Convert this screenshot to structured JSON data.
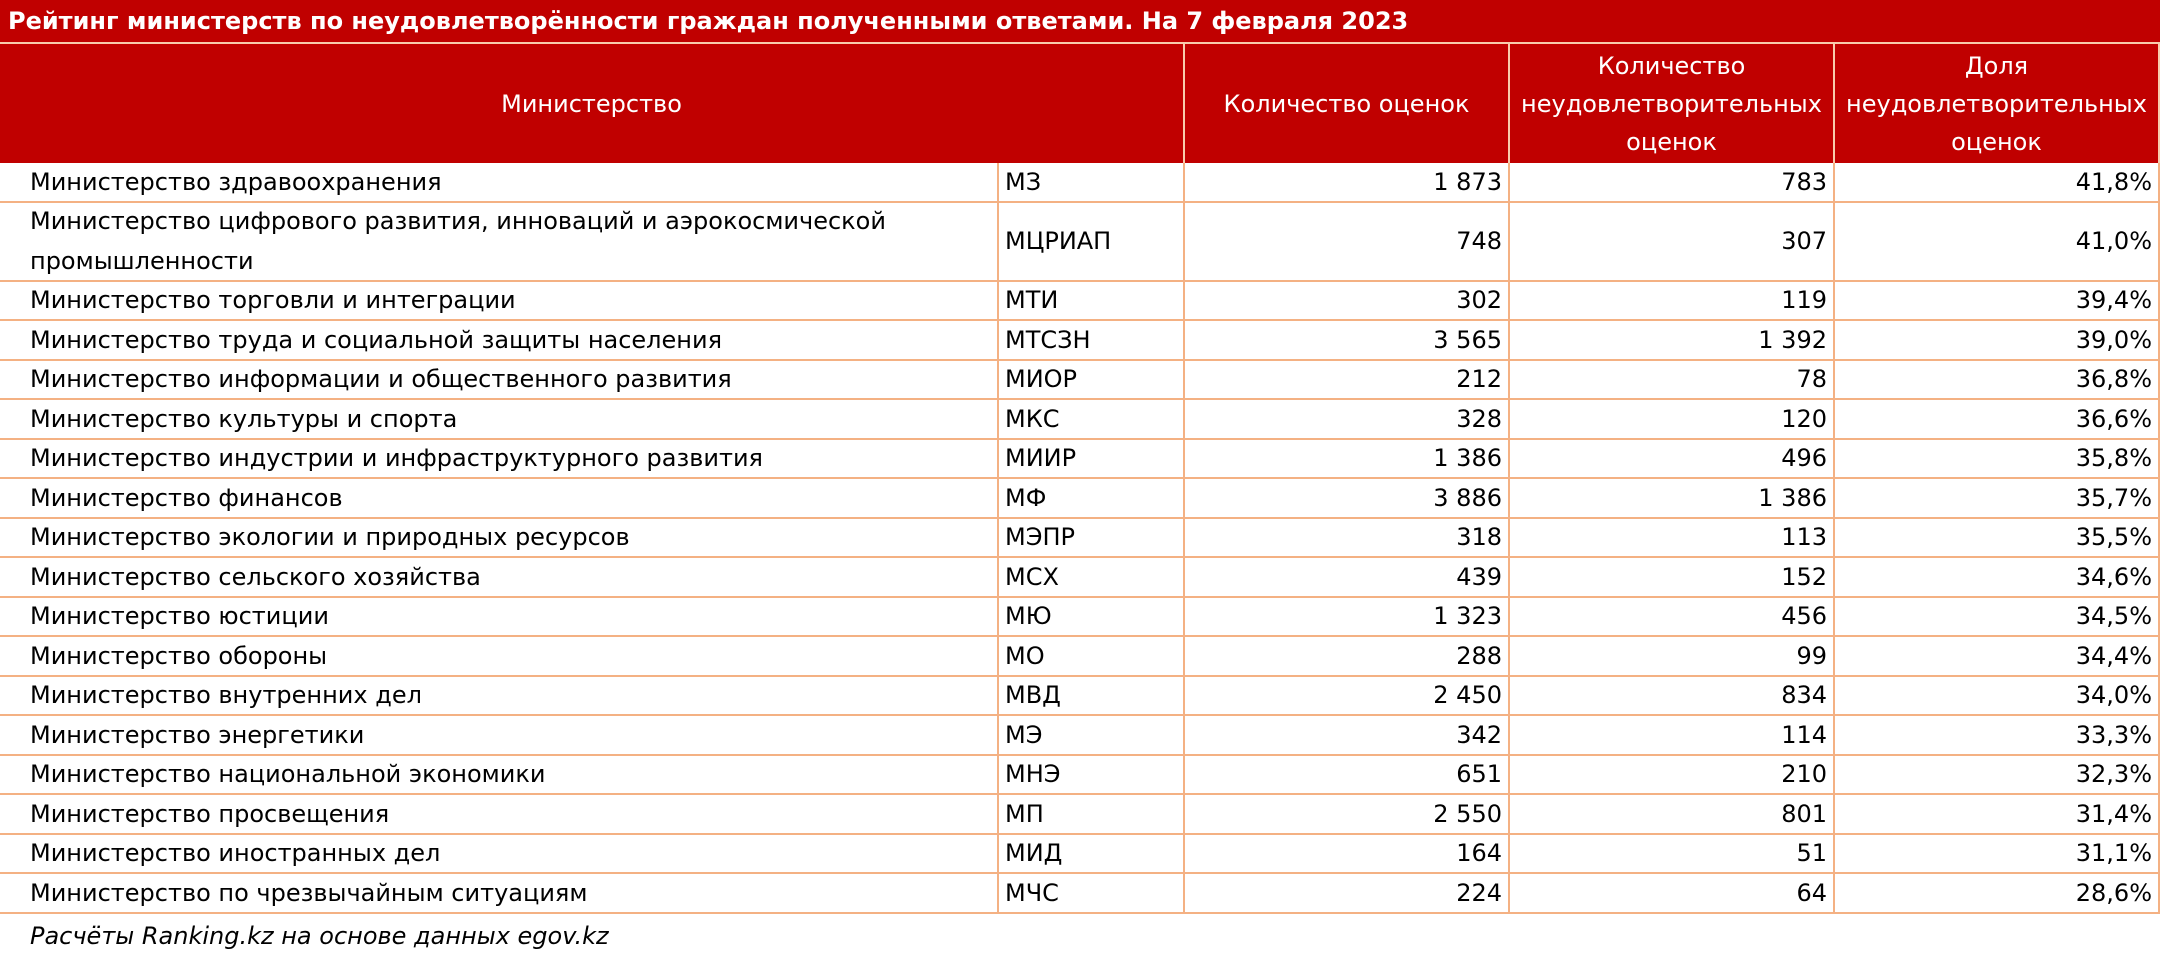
{
  "title": "Рейтинг министерств по неудовлетворённости граждан полученными ответами. На 7 февраля 2023",
  "header": {
    "columns": [
      "Министерство",
      "Количество оценок",
      "Количество неудовлетворительных оценок",
      "Доля неудовлетворительных оценок"
    ]
  },
  "table": {
    "rows": [
      [
        "Министерство здравоохранения",
        "МЗ",
        "1 873",
        "783",
        "41,8%"
      ],
      [
        "Министерство цифрового развития, инноваций и аэрокосмической промышленности",
        "МЦРИАП",
        "748",
        "307",
        "41,0%"
      ],
      [
        "Министерство торговли и интеграции",
        "МТИ",
        "302",
        "119",
        "39,4%"
      ],
      [
        "Министерство труда и социальной защиты населения",
        "МТСЗН",
        "3 565",
        "1 392",
        "39,0%"
      ],
      [
        "Министерство информации и общественного развития",
        "МИОР",
        "212",
        "78",
        "36,8%"
      ],
      [
        "Министерство культуры и спорта",
        "МКС",
        "328",
        "120",
        "36,6%"
      ],
      [
        "Министерство индустрии и инфраструктурного развития",
        "МИИР",
        "1 386",
        "496",
        "35,8%"
      ],
      [
        "Министерство финансов",
        "МФ",
        "3 886",
        "1 386",
        "35,7%"
      ],
      [
        "Министерство экологии и природных ресурсов",
        "МЭПР",
        "318",
        "113",
        "35,5%"
      ],
      [
        "Министерство сельского хозяйства",
        "МСХ",
        "439",
        "152",
        "34,6%"
      ],
      [
        "Министерство юстиции",
        "МЮ",
        "1 323",
        "456",
        "34,5%"
      ],
      [
        "Министерство обороны",
        "МО",
        "288",
        "99",
        "34,4%"
      ],
      [
        "Министерство внутренних дел",
        "МВД",
        "2 450",
        "834",
        "34,0%"
      ],
      [
        "Министерство энергетики",
        "МЭ",
        "342",
        "114",
        "33,3%"
      ],
      [
        "Министерство национальной экономики",
        "МНЭ",
        "651",
        "210",
        "32,3%"
      ],
      [
        "Министерство просвещения",
        "МП",
        "2 550",
        "801",
        "31,4%"
      ],
      [
        "Министерство иностранных дел",
        "МИД",
        "164",
        "51",
        "31,1%"
      ],
      [
        "Министерство по чрезвычайным ситуациям",
        "МЧС",
        "224",
        "64",
        "28,6%"
      ]
    ]
  },
  "source": "Расчёты Ranking.kz на основе данных egov.kz"
}
